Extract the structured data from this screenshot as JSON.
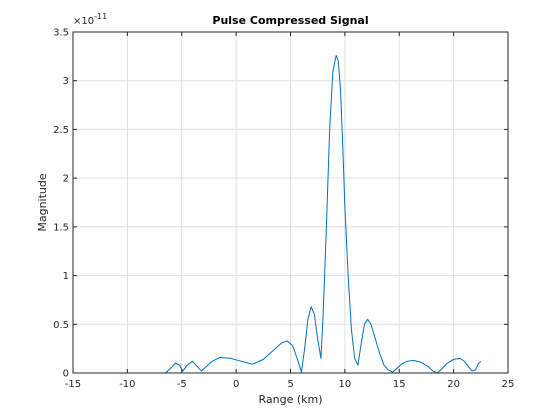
{
  "chart_data": {
    "type": "line",
    "title": "Pulse Compressed Signal",
    "xlabel": "Range (km)",
    "ylabel": "Magnitude",
    "xlim": [
      -15,
      25
    ],
    "ylim": [
      0,
      3.5
    ],
    "y_exponent_label": "×10",
    "y_exponent_power": "-11",
    "grid": true,
    "line_color": "#0072bd",
    "x_ticks": [
      -15,
      -10,
      -5,
      0,
      5,
      10,
      15,
      20,
      25
    ],
    "x_tick_labels": [
      "-15",
      "-10",
      "-5",
      "0",
      "5",
      "10",
      "15",
      "20",
      "25"
    ],
    "y_ticks": [
      0,
      0.5,
      1,
      1.5,
      2,
      2.5,
      3,
      3.5
    ],
    "y_tick_labels": [
      "0",
      "0.5",
      "1",
      "1.5",
      "2",
      "2.5",
      "3",
      "3.5"
    ],
    "series": [
      {
        "values_unit": "×10^-11",
        "x": [
          -15,
          -6.5,
          -6.0,
          -5.6,
          -5.2,
          -4.9,
          -4.5,
          -4.0,
          -3.6,
          -3.2,
          -2.8,
          -2.2,
          -1.5,
          -0.5,
          0.5,
          1.5,
          2.5,
          3.5,
          4.2,
          4.7,
          5.2,
          5.7,
          6.0,
          6.3,
          6.6,
          6.9,
          7.2,
          7.5,
          7.8,
          8.0,
          8.3,
          8.6,
          8.9,
          9.2,
          9.4,
          9.6,
          9.8,
          10.0,
          10.3,
          10.6,
          10.9,
          11.2,
          11.5,
          11.8,
          12.1,
          12.4,
          12.8,
          13.2,
          13.6,
          14.0,
          14.4,
          14.8,
          15.2,
          15.7,
          16.3,
          17.0,
          17.6,
          18.1,
          18.5,
          18.9,
          19.4,
          20.0,
          20.6,
          21.0,
          21.4,
          21.7,
          22.0,
          22.3,
          22.5
        ],
        "y": [
          0,
          0,
          0.05,
          0.1,
          0.08,
          0.02,
          0.08,
          0.12,
          0.07,
          0.02,
          0.06,
          0.12,
          0.16,
          0.15,
          0.12,
          0.09,
          0.14,
          0.24,
          0.31,
          0.33,
          0.28,
          0.12,
          0.01,
          0.25,
          0.55,
          0.68,
          0.6,
          0.35,
          0.15,
          0.6,
          1.5,
          2.5,
          3.1,
          3.26,
          3.2,
          2.9,
          2.35,
          1.7,
          1.0,
          0.45,
          0.15,
          0.08,
          0.3,
          0.5,
          0.55,
          0.5,
          0.35,
          0.2,
          0.08,
          0.03,
          0.01,
          0.05,
          0.09,
          0.12,
          0.13,
          0.11,
          0.07,
          0.02,
          0.0,
          0.04,
          0.1,
          0.14,
          0.15,
          0.12,
          0.06,
          0.02,
          0.03,
          0.1,
          0.12
        ]
      }
    ]
  }
}
